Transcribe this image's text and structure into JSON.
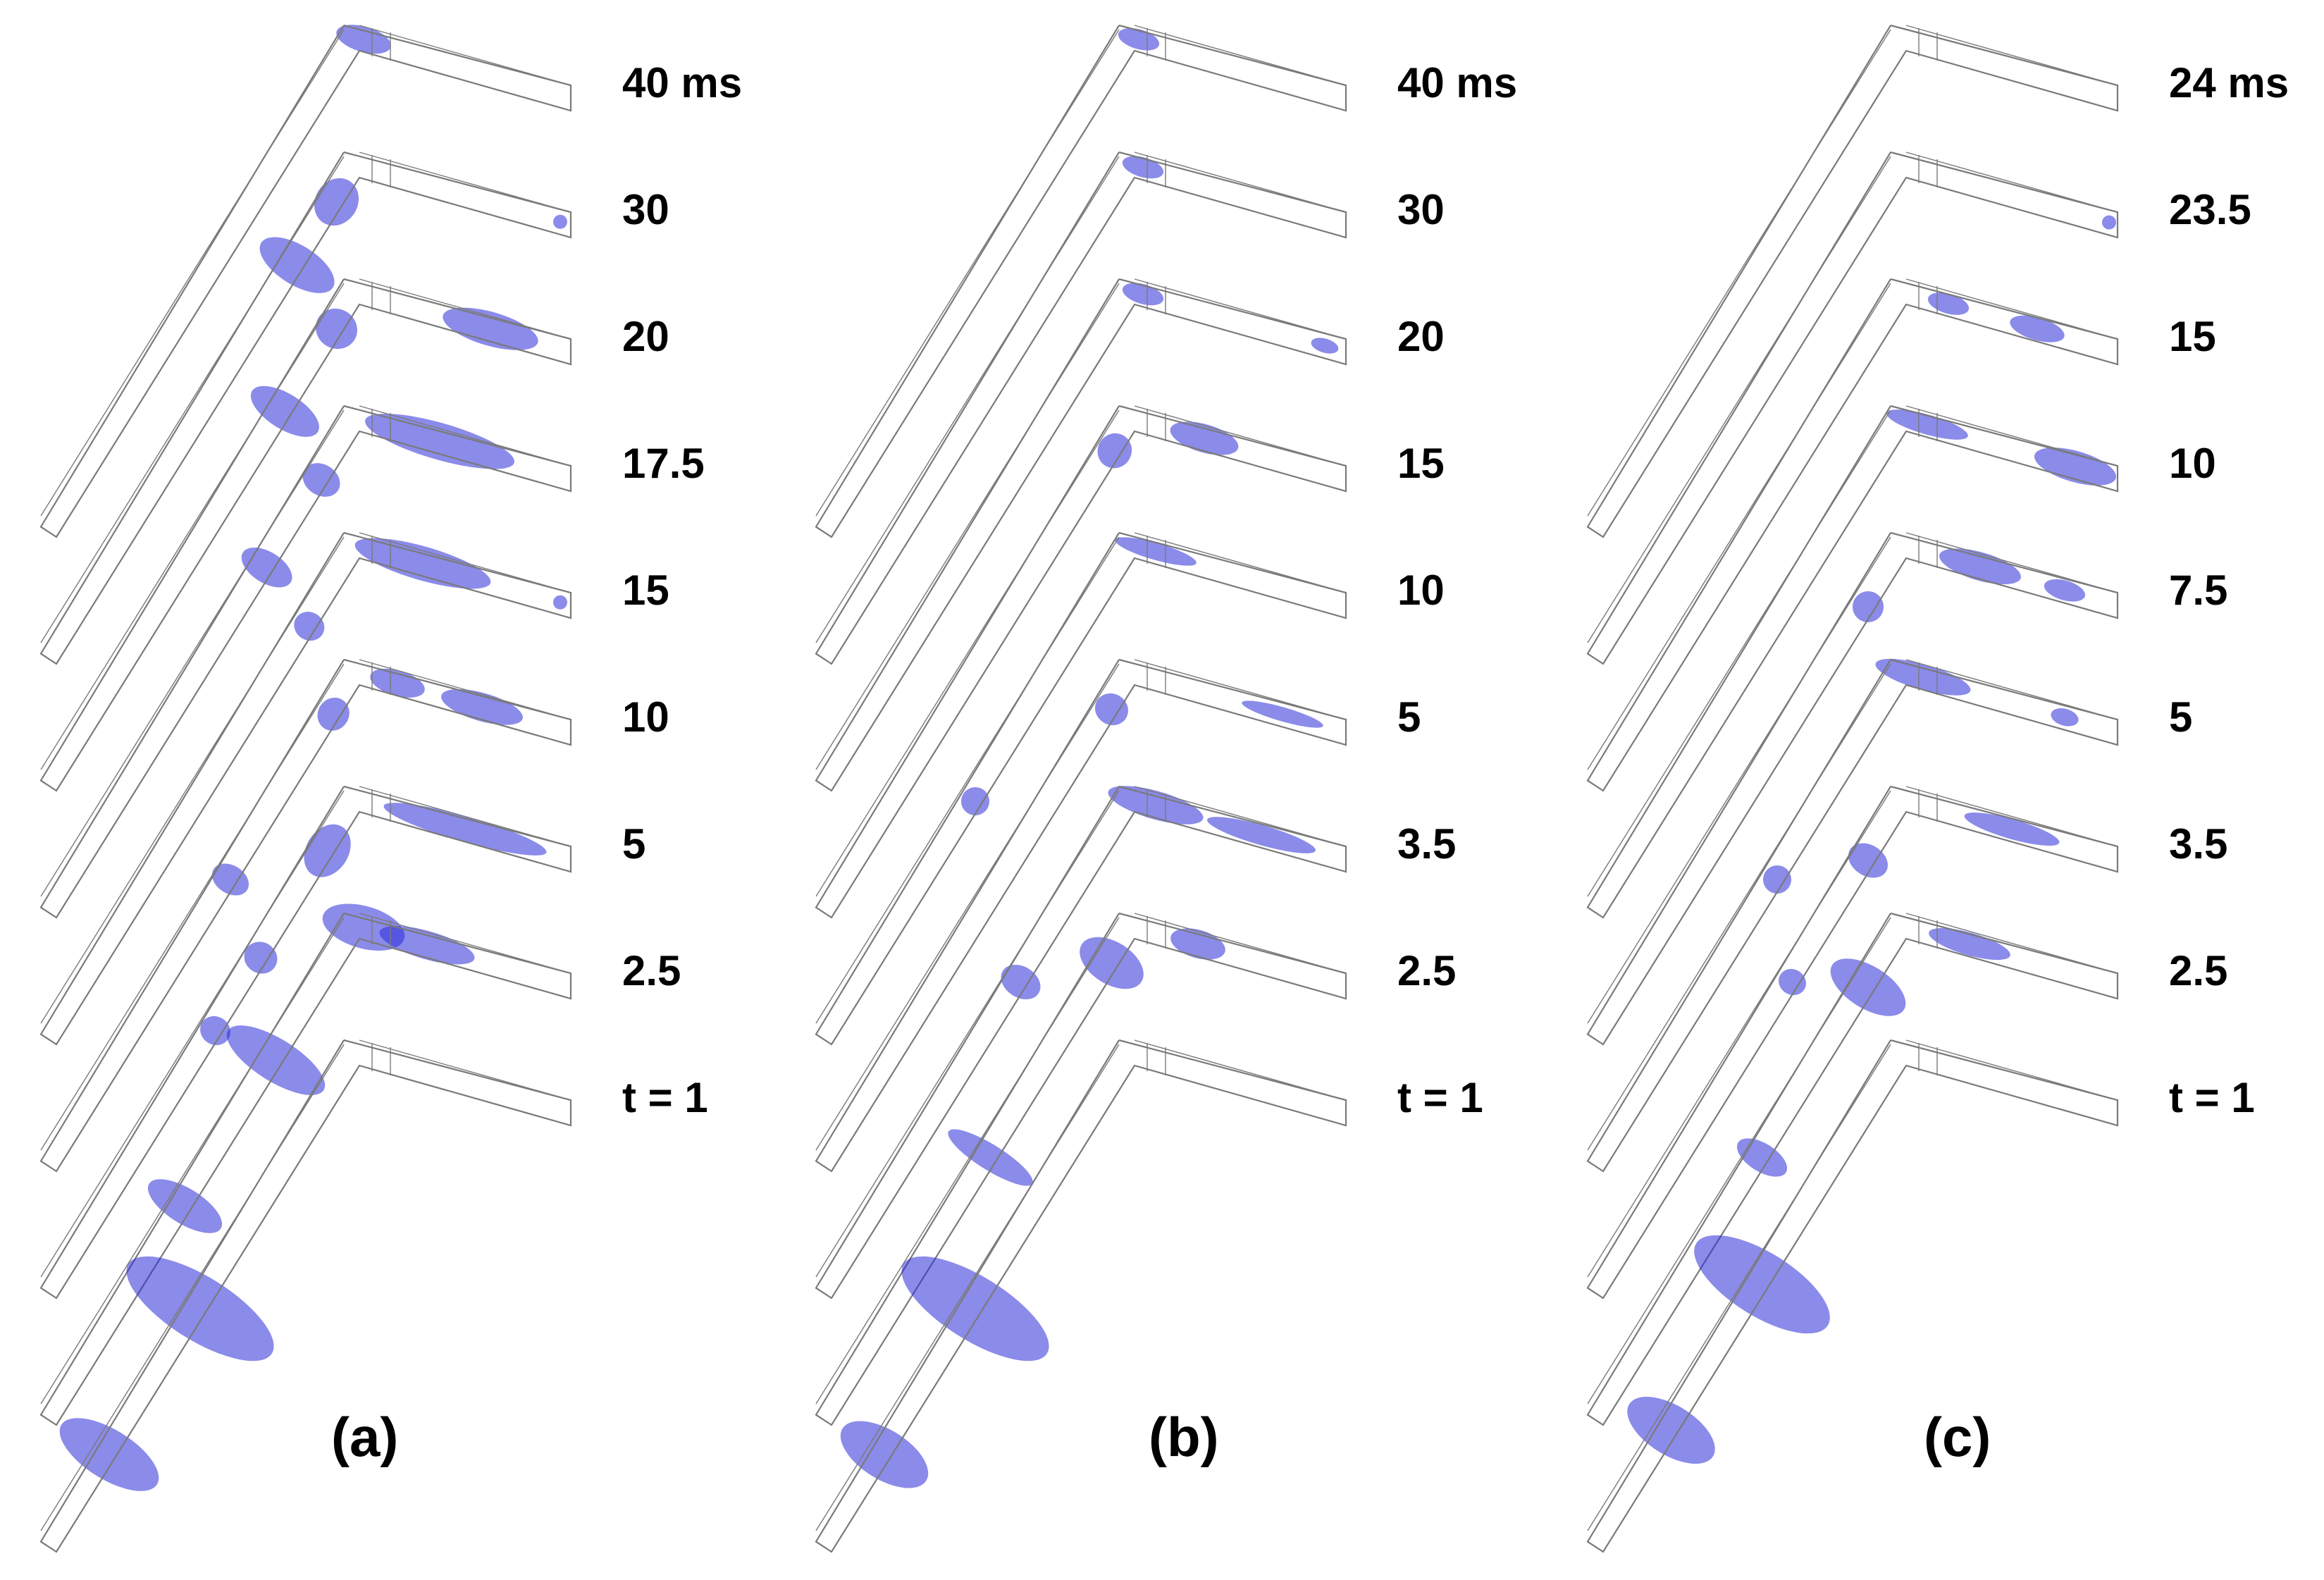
{
  "colors": {
    "outline": "#7a7a7a",
    "fluid": "#2b2bd8",
    "fluid_dark": "#1c1cb4",
    "background": "#ffffff"
  },
  "panels": [
    {
      "label": "(a)",
      "times": [
        "40 ms",
        "30",
        "20",
        "17.5",
        "15",
        "10",
        "5",
        "2.5",
        "t = 1"
      ]
    },
    {
      "label": "(b)",
      "times": [
        "40 ms",
        "30",
        "20",
        "15",
        "10",
        "5",
        "3.5",
        "2.5",
        "t = 1"
      ]
    },
    {
      "label": "(c)",
      "times": [
        "24 ms",
        "23.5",
        "15",
        "10",
        "7.5",
        "5",
        "3.5",
        "2.5",
        "t = 1"
      ]
    }
  ]
}
